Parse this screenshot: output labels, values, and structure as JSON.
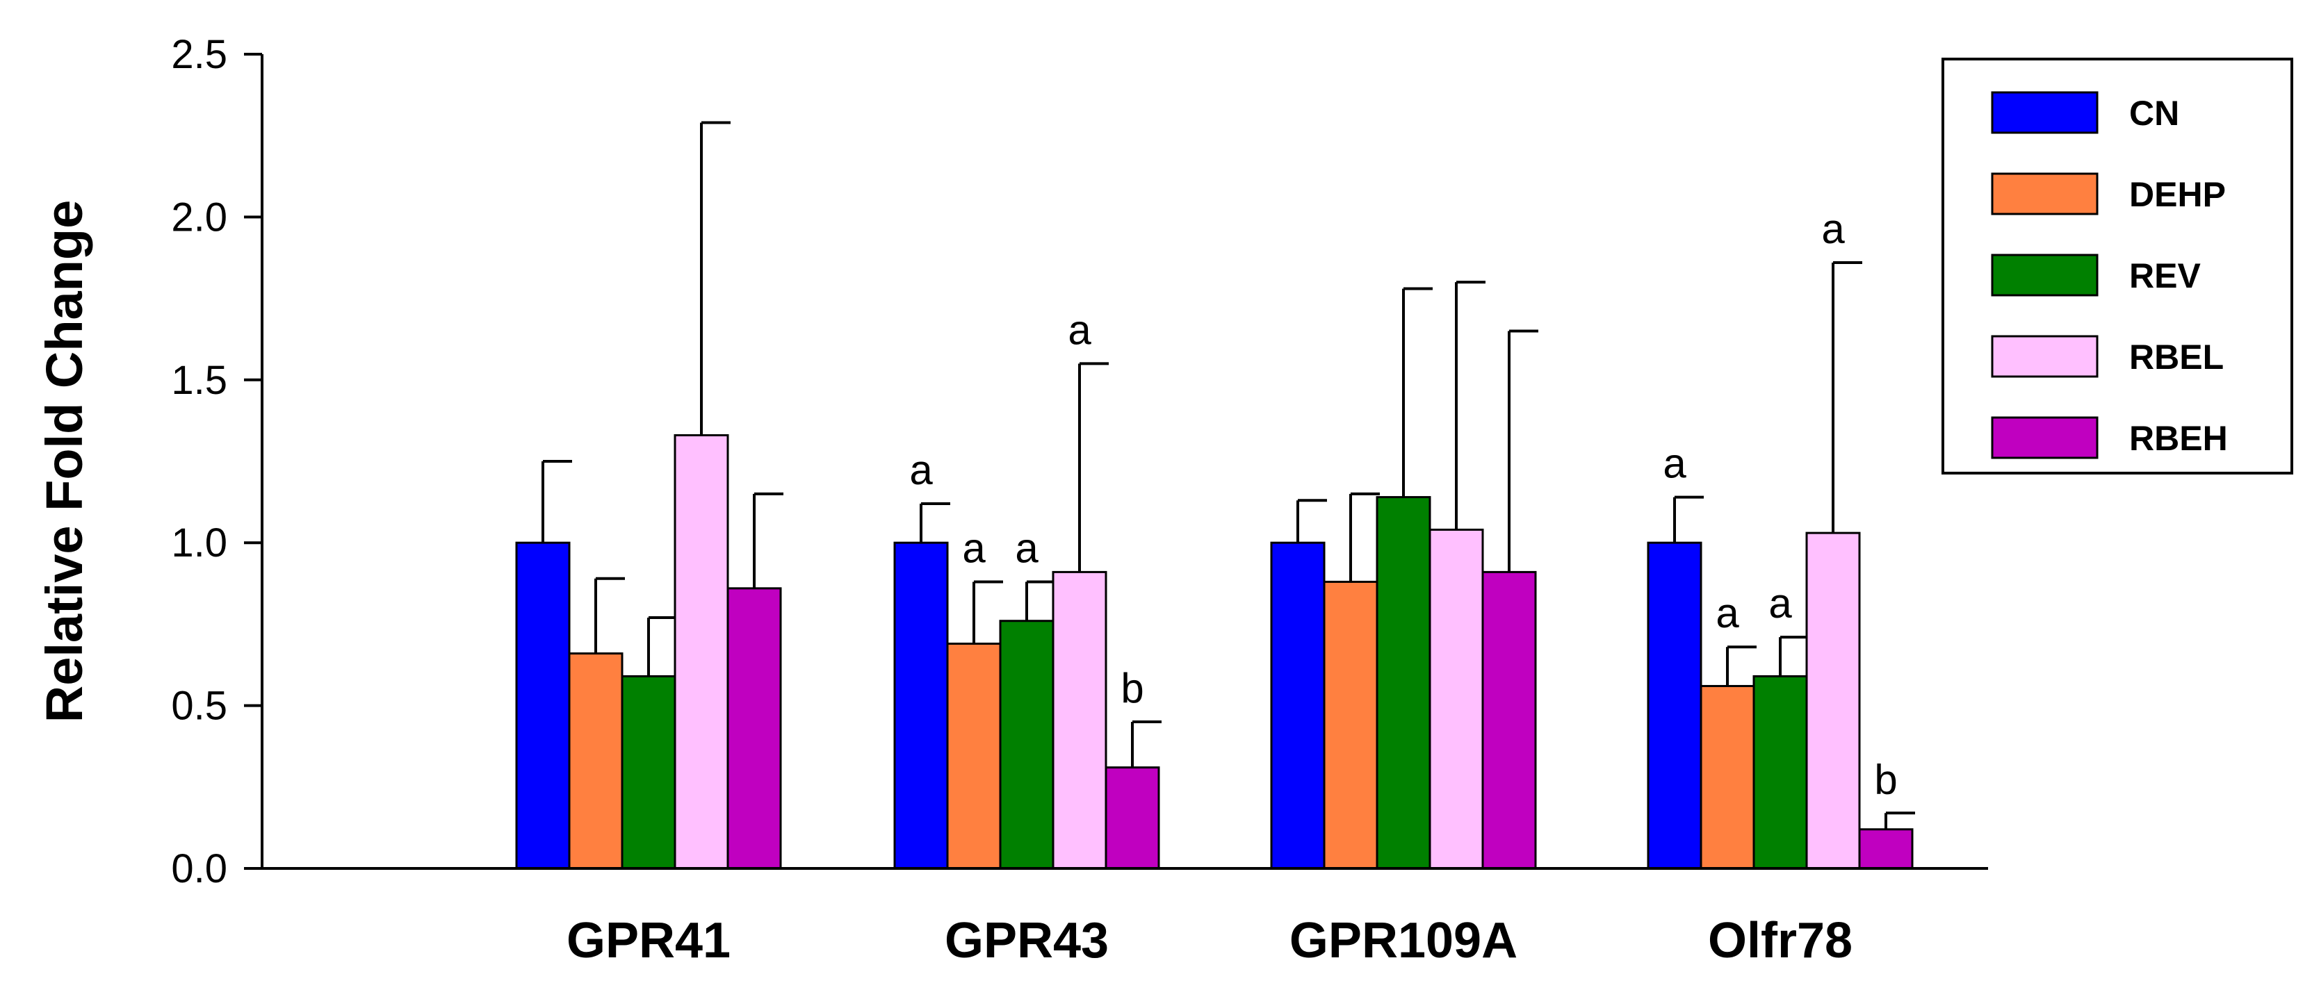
{
  "chart_data": {
    "type": "bar",
    "title": "",
    "xlabel": "",
    "ylabel": "Relative Fold Change",
    "ylim": [
      0,
      2.5
    ],
    "yticks": [
      "0.0",
      "0.5",
      "1.0",
      "1.5",
      "2.0",
      "2.5"
    ],
    "grid": false,
    "legend_position": "top-right",
    "categories": [
      "GPR41",
      "GPR43",
      "GPR109A",
      "Olfr78"
    ],
    "series": [
      {
        "name": "CN",
        "color": "#0000ff",
        "values": [
          1.0,
          1.0,
          1.0,
          1.0
        ],
        "errors": [
          0.25,
          0.12,
          0.13,
          0.14
        ],
        "labels": [
          "",
          "a",
          "",
          "a"
        ]
      },
      {
        "name": "DEHP",
        "color": "#ff8040",
        "values": [
          0.66,
          0.69,
          0.88,
          0.56
        ],
        "errors": [
          0.23,
          0.19,
          0.27,
          0.12
        ],
        "labels": [
          "",
          "a",
          "",
          "a"
        ]
      },
      {
        "name": "REV",
        "color": "#008000",
        "values": [
          0.59,
          0.76,
          1.14,
          0.59
        ],
        "errors": [
          0.18,
          0.12,
          0.64,
          0.12
        ],
        "labels": [
          "",
          "a",
          "",
          "a"
        ]
      },
      {
        "name": "RBEL",
        "color": "#ffc0ff",
        "values": [
          1.33,
          0.91,
          1.04,
          1.03
        ],
        "errors": [
          0.96,
          0.64,
          0.76,
          0.83
        ],
        "labels": [
          "",
          "a",
          "",
          "a"
        ]
      },
      {
        "name": "RBEH",
        "color": "#c000c0",
        "values": [
          0.86,
          0.31,
          0.91,
          0.12
        ],
        "errors": [
          0.29,
          0.14,
          0.74,
          0.05
        ],
        "labels": [
          "",
          "b",
          "",
          "b"
        ]
      }
    ]
  }
}
